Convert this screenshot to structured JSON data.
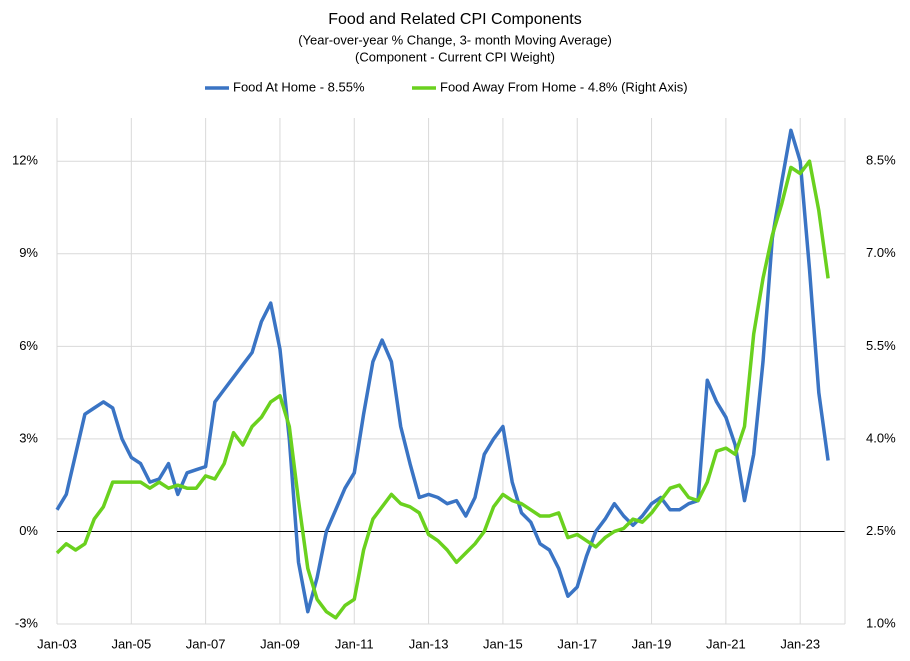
{
  "chart_data": {
    "type": "line",
    "title": "Food and Related CPI Components",
    "subtitle": "(Year-over-year % Change, 3- month Moving Average)",
    "subtitle2": "(Component - Current CPI Weight)",
    "legend": "top",
    "grid": true,
    "x": [
      "Jan-03",
      "Apr-03",
      "Jul-03",
      "Oct-03",
      "Jan-04",
      "Apr-04",
      "Jul-04",
      "Oct-04",
      "Jan-05",
      "Apr-05",
      "Jul-05",
      "Oct-05",
      "Jan-06",
      "Apr-06",
      "Jul-06",
      "Oct-06",
      "Jan-07",
      "Apr-07",
      "Jul-07",
      "Oct-07",
      "Jan-08",
      "Apr-08",
      "Jul-08",
      "Oct-08",
      "Jan-09",
      "Apr-09",
      "Jul-09",
      "Oct-09",
      "Jan-10",
      "Apr-10",
      "Jul-10",
      "Oct-10",
      "Jan-11",
      "Apr-11",
      "Jul-11",
      "Oct-11",
      "Jan-12",
      "Apr-12",
      "Jul-12",
      "Oct-12",
      "Jan-13",
      "Apr-13",
      "Jul-13",
      "Oct-13",
      "Jan-14",
      "Apr-14",
      "Jul-14",
      "Oct-14",
      "Jan-15",
      "Apr-15",
      "Jul-15",
      "Oct-15",
      "Jan-16",
      "Apr-16",
      "Jul-16",
      "Oct-16",
      "Jan-17",
      "Apr-17",
      "Jul-17",
      "Oct-17",
      "Jan-18",
      "Apr-18",
      "Jul-18",
      "Oct-18",
      "Jan-19",
      "Apr-19",
      "Jul-19",
      "Oct-19",
      "Jan-20",
      "Apr-20",
      "Jul-20",
      "Oct-20",
      "Jan-21",
      "Apr-21",
      "Jul-21",
      "Oct-21",
      "Jan-22",
      "Apr-22",
      "Jul-22",
      "Oct-22",
      "Jan-23",
      "Apr-23",
      "Jul-23",
      "Oct-23"
    ],
    "xticks": [
      "Jan-03",
      "Jan-05",
      "Jan-07",
      "Jan-09",
      "Jan-11",
      "Jan-13",
      "Jan-15",
      "Jan-17",
      "Jan-19",
      "Jan-21",
      "Jan-23"
    ],
    "ylim": [
      -3,
      13.4
    ],
    "yticks": [
      {
        "value": -3,
        "label": "-3%"
      },
      {
        "value": 0,
        "label": "0%"
      },
      {
        "value": 3,
        "label": "3%"
      },
      {
        "value": 6,
        "label": "6%"
      },
      {
        "value": 9,
        "label": "9%"
      },
      {
        "value": 12,
        "label": "12%"
      }
    ],
    "y2lim": [
      1.0,
      9.2
    ],
    "y2ticks": [
      {
        "value": 1.0,
        "label": "1.0%"
      },
      {
        "value": 2.5,
        "label": "2.5%"
      },
      {
        "value": 4.0,
        "label": "4.0%"
      },
      {
        "value": 5.5,
        "label": "5.5%"
      },
      {
        "value": 7.0,
        "label": "7.0%"
      },
      {
        "value": 8.5,
        "label": "8.5%"
      }
    ],
    "series": [
      {
        "name": "Food At Home - 8.55%",
        "color": "#3a74c4",
        "values": [
          0.7,
          1.2,
          2.5,
          3.8,
          4.0,
          4.2,
          4.0,
          3.0,
          2.4,
          2.2,
          1.6,
          1.7,
          2.2,
          1.2,
          1.9,
          2.0,
          2.1,
          4.2,
          4.6,
          5.0,
          5.4,
          5.8,
          6.8,
          7.4,
          5.9,
          3.0,
          -1.0,
          -2.6,
          -1.5,
          0.0,
          0.7,
          1.4,
          1.9,
          3.8,
          5.5,
          6.2,
          5.5,
          3.4,
          2.2,
          1.1,
          1.2,
          1.1,
          0.9,
          1.0,
          0.5,
          1.1,
          2.5,
          3.0,
          3.4,
          1.6,
          0.6,
          0.3,
          -0.4,
          -0.6,
          -1.2,
          -2.1,
          -1.8,
          -0.8,
          0.0,
          0.4,
          0.9,
          0.5,
          0.2,
          0.5,
          0.9,
          1.1,
          0.7,
          0.7,
          0.9,
          1.0,
          4.9,
          4.2,
          3.7,
          2.8,
          1.0,
          2.5,
          5.5,
          9.5,
          11.3,
          13.0,
          12.0,
          8.5,
          4.5,
          2.3
        ]
      },
      {
        "name": "Food Away From Home - 4.8% (Right Axis)",
        "color": "#6ad11e",
        "axis": "y2",
        "values": [
          2.15,
          2.3,
          2.2,
          2.3,
          2.7,
          2.9,
          3.3,
          3.3,
          3.3,
          3.3,
          3.2,
          3.3,
          3.2,
          3.25,
          3.2,
          3.2,
          3.4,
          3.35,
          3.6,
          4.1,
          3.9,
          4.2,
          4.35,
          4.6,
          4.7,
          4.2,
          3.0,
          1.9,
          1.4,
          1.2,
          1.1,
          1.3,
          1.4,
          2.2,
          2.7,
          2.9,
          3.1,
          2.95,
          2.9,
          2.8,
          2.45,
          2.35,
          2.2,
          2.0,
          2.15,
          2.3,
          2.5,
          2.9,
          3.1,
          3.0,
          2.95,
          2.85,
          2.75,
          2.75,
          2.8,
          2.4,
          2.45,
          2.35,
          2.25,
          2.4,
          2.5,
          2.55,
          2.7,
          2.65,
          2.8,
          3.0,
          3.2,
          3.25,
          3.05,
          3.0,
          3.3,
          3.8,
          3.85,
          3.75,
          4.2,
          5.7,
          6.6,
          7.3,
          7.8,
          8.4,
          8.3,
          8.5,
          7.7,
          6.6
        ]
      }
    ]
  }
}
